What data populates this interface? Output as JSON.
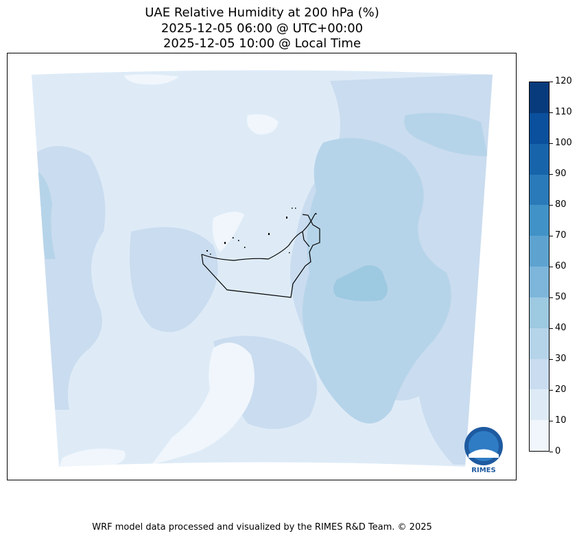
{
  "title": {
    "line1": "UAE Relative Humidity at 200 hPa (%)",
    "line2": "2025-12-05 06:00 @ UTC+00:00",
    "line3": "2025-12-05 10:00 @ Local Time"
  },
  "colorbar": {
    "levels": [
      0,
      10,
      20,
      30,
      40,
      50,
      60,
      70,
      80,
      90,
      100,
      110,
      120
    ],
    "colors": [
      "#f0f6fc",
      "#deebf7",
      "#cadcef",
      "#b6d4e9",
      "#9dc9e1",
      "#7db6da",
      "#5ea3d0",
      "#4192c6",
      "#2a7ab9",
      "#1764ab",
      "#0a509c",
      "#083b7c"
    ],
    "labels": [
      "0",
      "10",
      "20",
      "30",
      "40",
      "50",
      "60",
      "70",
      "80",
      "90",
      "100",
      "110",
      "120"
    ]
  },
  "logo": {
    "text": "RIMES"
  },
  "footer": "WRF model data processed and visualized by the RIMES R&D Team. © 2025"
}
